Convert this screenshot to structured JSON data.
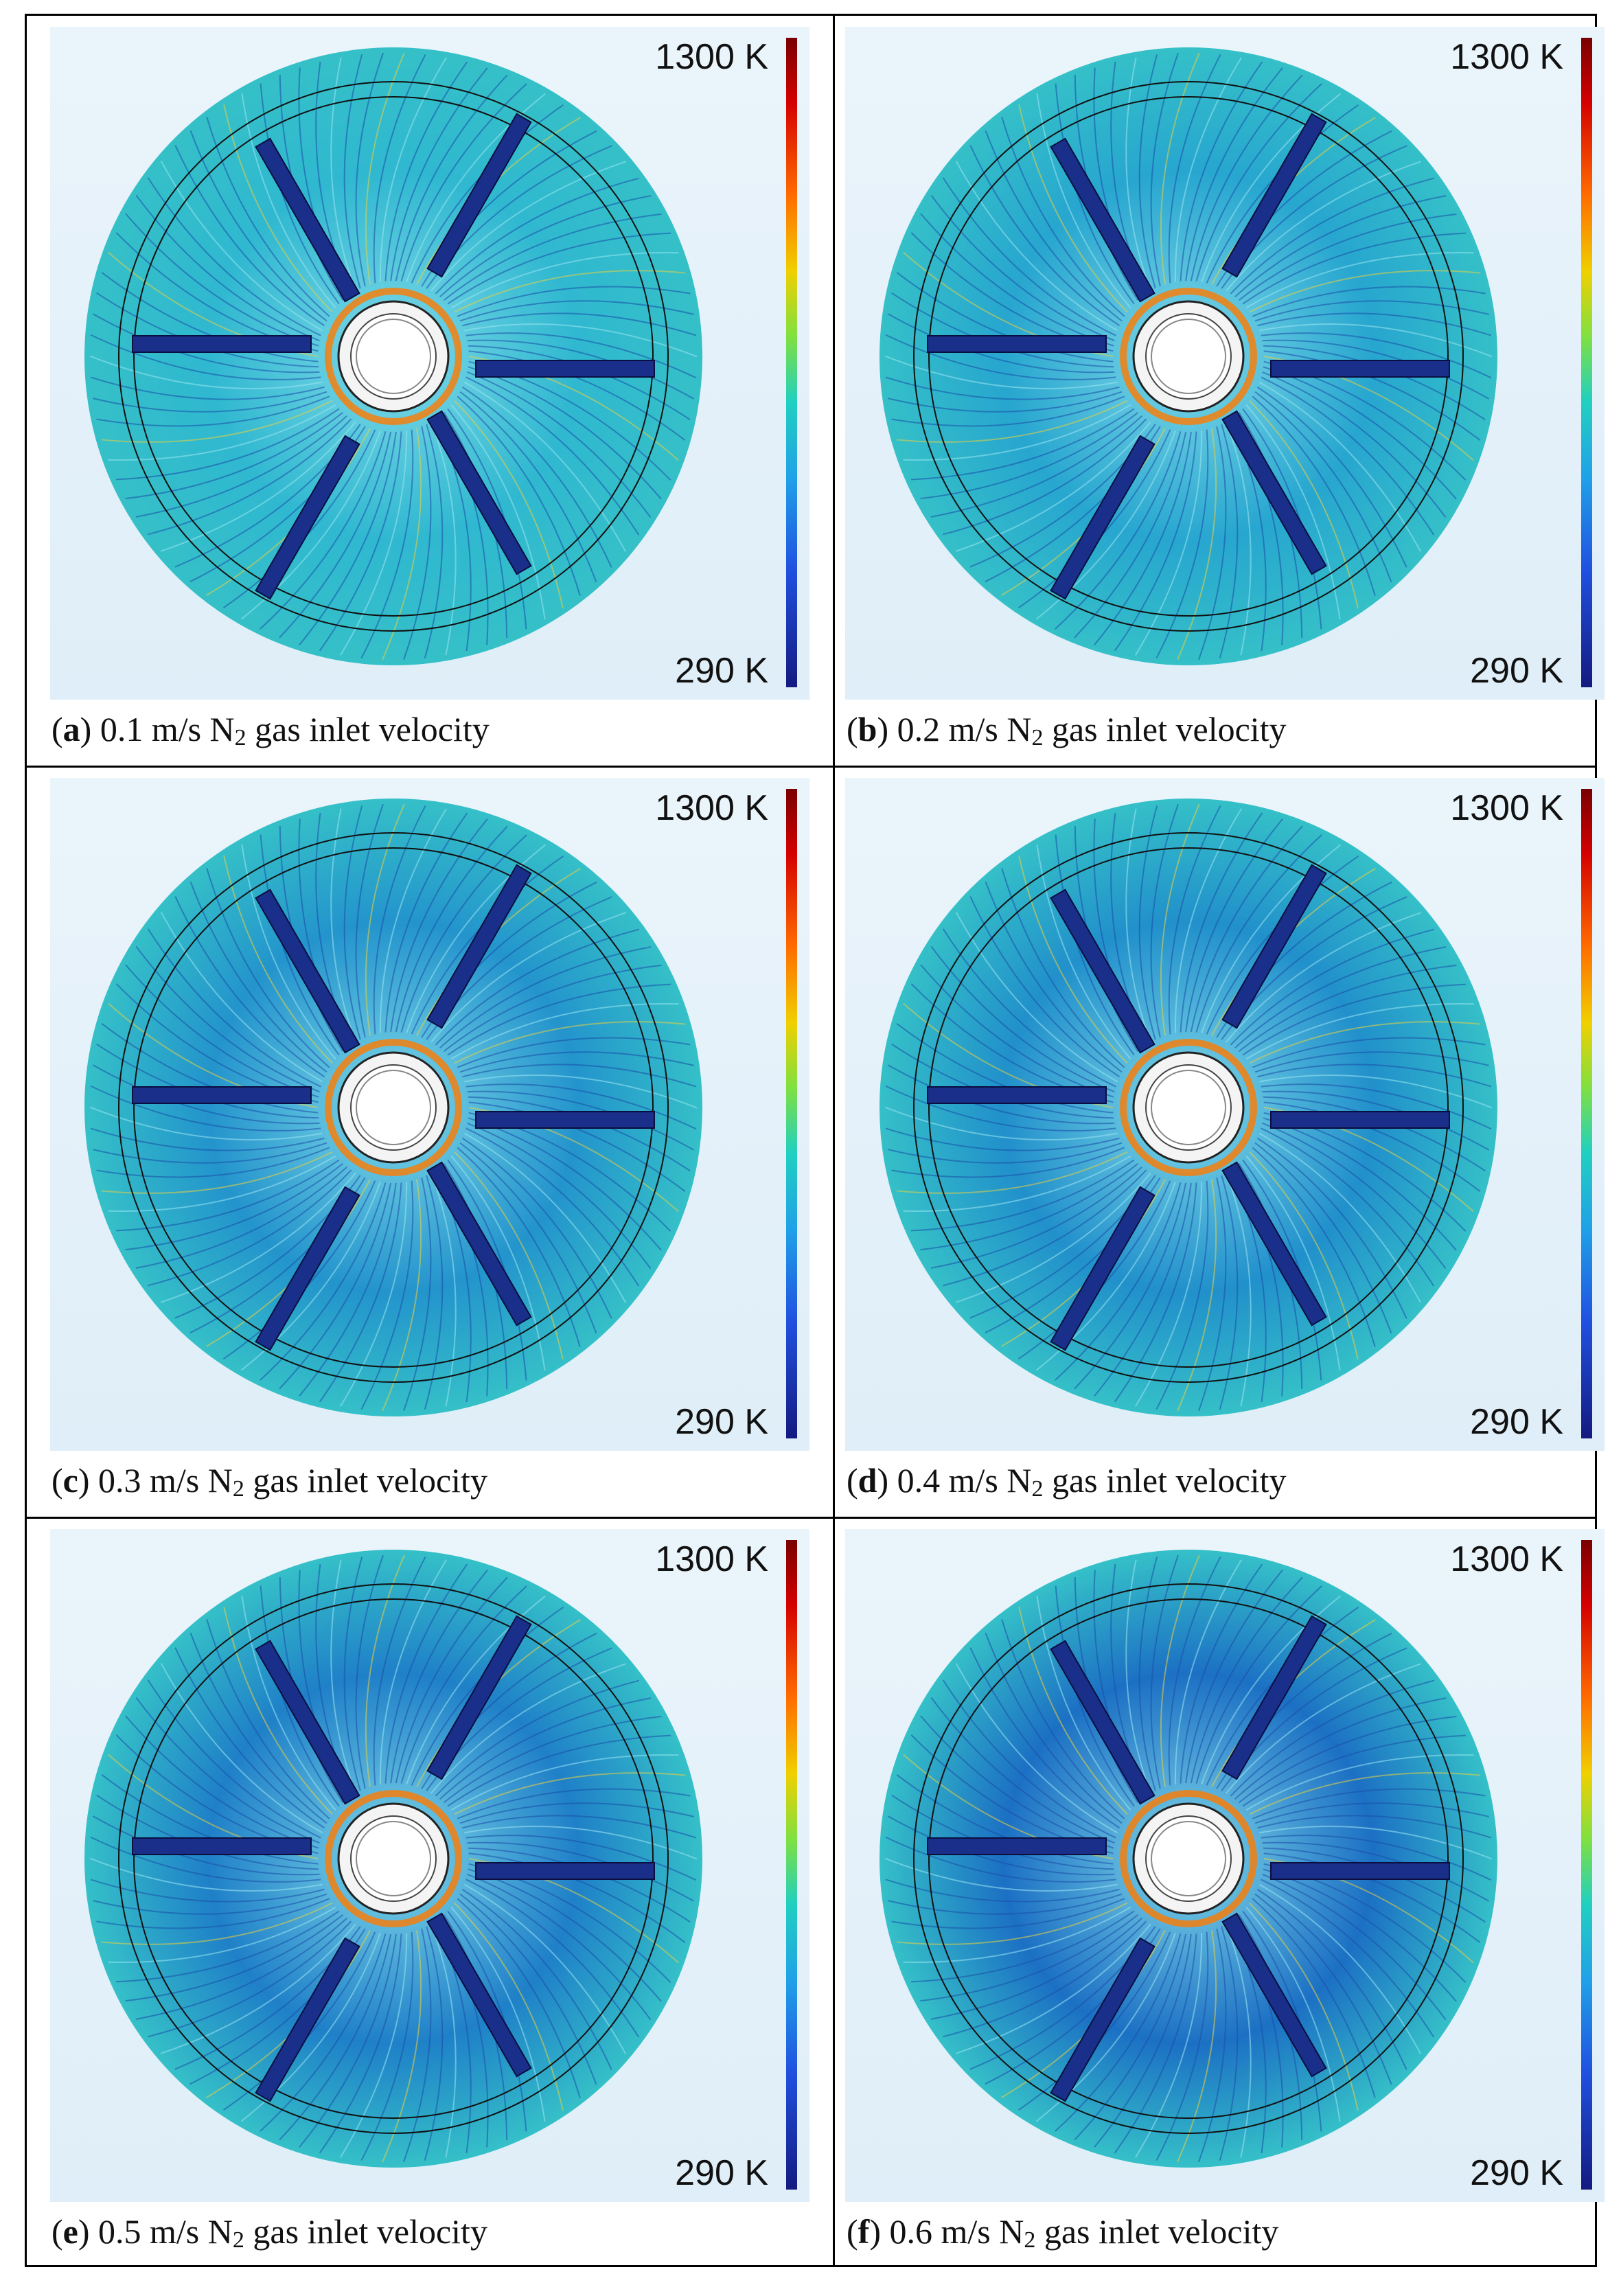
{
  "colorbar": {
    "max_label": "1300 K",
    "min_label": "290 K"
  },
  "panels": [
    {
      "letter": "a",
      "value": "0.1",
      "text_pre": " m/s N",
      "sub": "2",
      "text_post": " gas inlet velocity",
      "shade": "#2fb8d0"
    },
    {
      "letter": "b",
      "value": "0.2",
      "text_pre": " m/s N",
      "sub": "2",
      "text_post": " gas inlet velocity",
      "shade": "#27a6cf"
    },
    {
      "letter": "c",
      "value": "0.3",
      "text_pre": " m/s N",
      "sub": "2",
      "text_post": " gas inlet velocity",
      "shade": "#2394cc"
    },
    {
      "letter": "d",
      "value": "0.4",
      "text_pre": " m/s N",
      "sub": "2",
      "text_post": " gas inlet velocity",
      "shade": "#2190cb"
    },
    {
      "letter": "e",
      "value": "0.5",
      "text_pre": " m/s N",
      "sub": "2",
      "text_post": " gas inlet velocity",
      "shade": "#1f80c8"
    },
    {
      "letter": "f",
      "value": "0.6",
      "text_pre": " m/s N",
      "sub": "2",
      "text_post": " gas inlet velocity",
      "shade": "#1c70c4"
    }
  ]
}
